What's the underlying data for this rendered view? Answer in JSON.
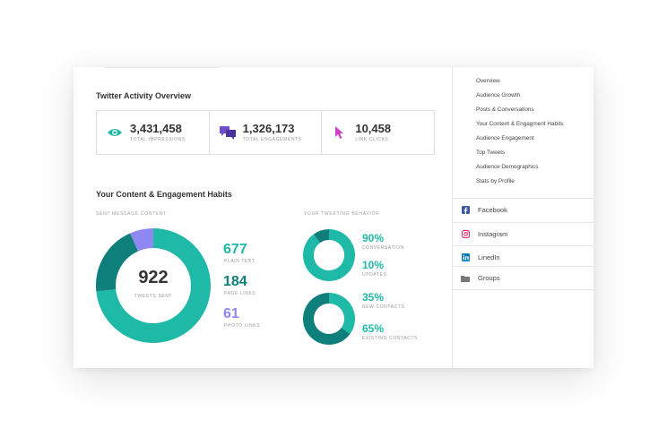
{
  "activity": {
    "title": "Twitter Activity Overview",
    "stats": [
      {
        "icon": "eye-icon",
        "value": "3,431,458",
        "label": "TOTAL IMPRESSIONS",
        "color": "#1fb9a7"
      },
      {
        "icon": "chat-bubbles-icon",
        "value": "1,326,173",
        "label": "TOTAL ENGAGEMENTS",
        "color": "#6f4fc8"
      },
      {
        "icon": "cursor-icon",
        "value": "10,458",
        "label": "LINK CLICKS",
        "color": "#d13ec4"
      }
    ]
  },
  "habits": {
    "title": "Your Content & Engagement Habits",
    "sent_label": "SENT MESSAGE CONTENT",
    "behavior_label": "YOUR TWEETING BEHAVIOR",
    "total": {
      "value": "922",
      "label": "TWEETS SENT"
    },
    "breakdown": [
      {
        "value": "677",
        "label": "PLAIN TEXT",
        "color": "#1fb9a7"
      },
      {
        "value": "184",
        "label": "PAGE LINKS",
        "color": "#0e7f7a"
      },
      {
        "value": "61",
        "label": "PHOTO LINKS",
        "color": "#8f87f2"
      }
    ],
    "behavior": [
      {
        "pct": "90%",
        "label": "CONVERSATION",
        "fraction": 0.9
      },
      {
        "pct": "10%",
        "label": "UPDATES"
      },
      {
        "pct": "35%",
        "label": "NEW CONTACTS",
        "fraction": 0.35
      },
      {
        "pct": "65%",
        "label": "EXISTING CONTACTS"
      }
    ]
  },
  "nav": {
    "items": [
      "Overview",
      "Audience Growth",
      "Posts & Conversations",
      "Your Content & Engagment Habits",
      "Audience Engagement",
      "Top Tweets",
      "Audience Demographics",
      "Stats by Profile"
    ],
    "networks": [
      {
        "label": "Facebook",
        "icon": "facebook-icon",
        "color": "#3b5998"
      },
      {
        "label": "Instagram",
        "icon": "instagram-icon",
        "color": "#e1306c"
      },
      {
        "label": "LinedIn",
        "icon": "linkedin-icon",
        "color": "#0077b5"
      },
      {
        "label": "Groups",
        "icon": "folder-icon",
        "color": "#777777"
      }
    ]
  },
  "colors": {
    "teal": "#1fb9a7",
    "dark_teal": "#0e7f7a",
    "purple": "#8f87f2"
  }
}
